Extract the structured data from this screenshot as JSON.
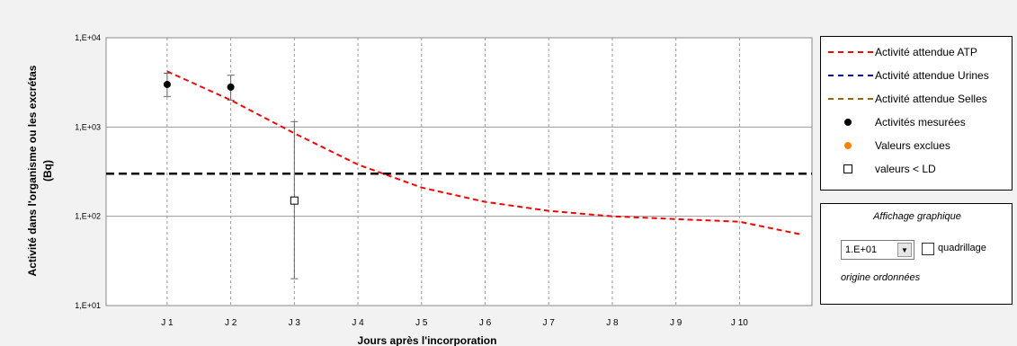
{
  "chart_data": {
    "type": "line",
    "title": "",
    "xlabel": "Jours après l'incorporation",
    "ylabel": "Activité dans l'organisme ou les excrétas (Bq)",
    "y_scale": "log",
    "ylim": [
      10,
      10000
    ],
    "y_ticks": [
      "1,E+01",
      "1,E+02",
      "1,E+03",
      "1,E+04"
    ],
    "categories": [
      "J 1",
      "J 2",
      "J 3",
      "J 4",
      "J 5",
      "J 6",
      "J 7",
      "J 8",
      "J 9",
      "J 10"
    ],
    "grid": true,
    "series": [
      {
        "name": "Activité attendue ATP",
        "type": "line",
        "style": "dashed",
        "color": "#ff0000",
        "x": [
          1,
          2,
          3,
          4,
          5,
          6,
          7,
          8,
          9,
          10,
          11
        ],
        "y": [
          4200,
          2000,
          850,
          380,
          210,
          145,
          115,
          100,
          93,
          87,
          62
        ]
      },
      {
        "name": "Activités mesurées",
        "type": "scatter",
        "marker": "filled-circle",
        "color": "#000000",
        "points": [
          {
            "x": 1,
            "y": 3000,
            "err_low": 2200,
            "err_high": 4000
          },
          {
            "x": 2,
            "y": 2800,
            "err_low": 2000,
            "err_high": 3800
          }
        ]
      },
      {
        "name": "valeurs < LD",
        "type": "scatter",
        "marker": "open-square",
        "color": "#000000",
        "points": [
          {
            "x": 3,
            "y": 150,
            "err_low": 20,
            "err_high": 1150
          }
        ]
      },
      {
        "type": "reference",
        "style": "dashed",
        "color": "#000000",
        "y": 300
      }
    ],
    "legend_position": "right"
  },
  "legend": {
    "items": [
      {
        "label": "Activité attendue ATP",
        "kind": "line",
        "color": "#ff0000"
      },
      {
        "label": "Activité attendue Urines",
        "kind": "line",
        "color": "#0000cc"
      },
      {
        "label": "Activité attendue Selles",
        "kind": "line",
        "color": "#996600"
      },
      {
        "label": "Activités mesurées",
        "kind": "dot",
        "color": "#000000"
      },
      {
        "label": "Valeurs exclues",
        "kind": "dot",
        "color": "#ff8000"
      },
      {
        "label": "valeurs < LD",
        "kind": "square",
        "color": "#000000"
      }
    ]
  },
  "controls": {
    "title": "Affichage graphique",
    "origin_value": "1.E+01",
    "checkbox_label": "quadrillage",
    "checkbox_checked": false,
    "footer": "origine ordonnées"
  }
}
